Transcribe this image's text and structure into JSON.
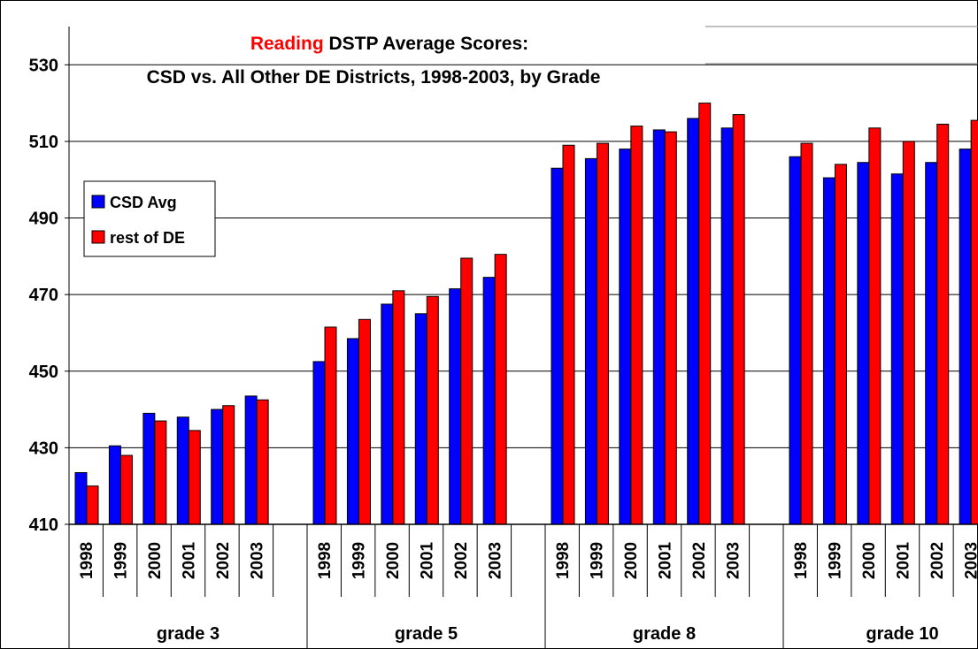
{
  "chart_data": {
    "type": "bar",
    "title_highlight": "Reading",
    "title_highlight_color": "#ff0000",
    "title": "DSTP Average Scores:",
    "subtitle": "CSD vs. All Other DE Districts, 1998-2003, by Grade",
    "groups": [
      {
        "label": "grade 3",
        "categories": [
          "1998",
          "1999",
          "2000",
          "2001",
          "2002",
          "2003"
        ]
      },
      {
        "label": "grade 5",
        "categories": [
          "1998",
          "1999",
          "2000",
          "2001",
          "2002",
          "2003"
        ]
      },
      {
        "label": "grade 8",
        "categories": [
          "1998",
          "1999",
          "2000",
          "2001",
          "2002",
          "2003"
        ]
      },
      {
        "label": "grade 10",
        "categories": [
          "1998",
          "1999",
          "2000",
          "2001",
          "2002",
          "2003"
        ]
      }
    ],
    "series": [
      {
        "name": "CSD Avg",
        "color": "#0000ff",
        "values": [
          423.5,
          430.5,
          439,
          438,
          440,
          443.5,
          452.5,
          458.5,
          467.5,
          465,
          471.5,
          474.5,
          503,
          505.5,
          508,
          513,
          516,
          513.5,
          506,
          500.5,
          504.5,
          501.5,
          504.5,
          508
        ]
      },
      {
        "name": "rest of DE",
        "color": "#ff0000",
        "values": [
          420,
          428,
          437,
          434.5,
          441,
          442.5,
          461.5,
          463.5,
          471,
          469.5,
          479.5,
          480.5,
          509,
          509.5,
          514,
          512.5,
          520,
          517,
          509.5,
          504,
          513.5,
          510,
          514.5,
          515.5
        ]
      }
    ],
    "ylim": [
      410,
      540
    ],
    "yticks": [
      410,
      430,
      450,
      470,
      490,
      510,
      530
    ],
    "grid": true,
    "legend": "left"
  }
}
